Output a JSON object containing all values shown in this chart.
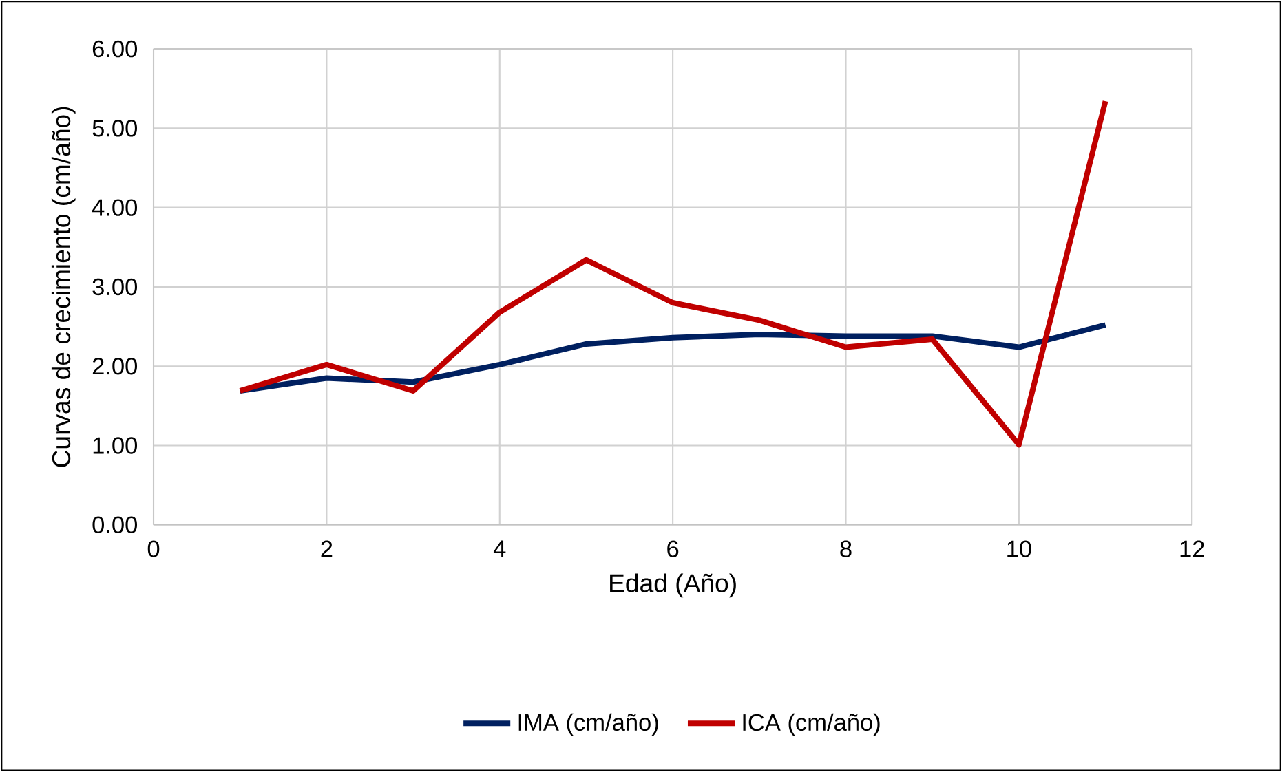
{
  "chart_data": {
    "type": "line",
    "xlabel": "Edad (Año)",
    "ylabel": "Curvas de crecimiento (cm/año)",
    "xlim": [
      0,
      12
    ],
    "xticks": [
      0,
      2,
      4,
      6,
      8,
      10,
      12
    ],
    "ylim": [
      0,
      6
    ],
    "yticks": [
      {
        "value": 0,
        "label": "0.00"
      },
      {
        "value": 1,
        "label": "1.00"
      },
      {
        "value": 2,
        "label": "2.00"
      },
      {
        "value": 3,
        "label": "3.00"
      },
      {
        "value": 4,
        "label": "4.00"
      },
      {
        "value": 5,
        "label": "5.00"
      },
      {
        "value": 6,
        "label": "6.00"
      }
    ],
    "grid": true,
    "legend": "bottom",
    "marker": "none",
    "line_style": "solid",
    "series": [
      {
        "name": "IMA (cm/año)",
        "color": "#002060",
        "x": [
          1,
          2,
          3,
          4,
          5,
          6,
          7,
          8,
          9,
          10,
          11
        ],
        "values": [
          1.69,
          1.85,
          1.8,
          2.02,
          2.28,
          2.36,
          2.4,
          2.38,
          2.38,
          2.24,
          2.52
        ]
      },
      {
        "name": "ICA (cm/año)",
        "color": "#c00000",
        "x": [
          1,
          2,
          3,
          4,
          5,
          6,
          7,
          8,
          9,
          10,
          11
        ],
        "values": [
          1.69,
          2.02,
          1.69,
          2.68,
          3.34,
          2.8,
          2.58,
          2.24,
          2.34,
          1.01,
          5.34
        ]
      }
    ]
  }
}
